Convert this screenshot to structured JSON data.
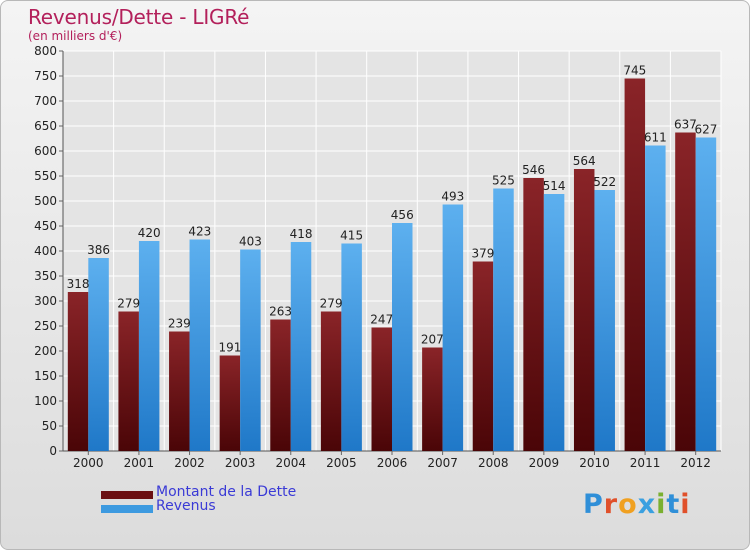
{
  "header": {
    "title": "Revenus/Dette - LIGRé",
    "subtitle": "(en milliers d'€)"
  },
  "legend": {
    "debt_label": "Montant de la Dette",
    "revenue_label": "Revenus"
  },
  "logo": {
    "letters": [
      "P",
      "r",
      "o",
      "x",
      "i",
      "t",
      "i"
    ]
  },
  "colors": {
    "debt": "#7a1a1d",
    "revenue": "#3d9ae0",
    "title": "#b3205b",
    "legend_text": "#3a3ad6"
  },
  "chart_data": {
    "type": "bar",
    "title": "Revenus/Dette - LIGRé",
    "subtitle": "(en milliers d'€)",
    "categories": [
      "2000",
      "2001",
      "2002",
      "2003",
      "2004",
      "2005",
      "2006",
      "2007",
      "2008",
      "2009",
      "2010",
      "2011",
      "2012"
    ],
    "series": [
      {
        "name": "Montant de la Dette",
        "values": [
          318,
          279,
          239,
          191,
          263,
          279,
          247,
          207,
          379,
          546,
          564,
          745,
          637
        ]
      },
      {
        "name": "Revenus",
        "values": [
          386,
          420,
          423,
          403,
          418,
          415,
          456,
          493,
          525,
          514,
          522,
          611,
          627
        ]
      }
    ],
    "ylim": [
      0,
      800
    ],
    "yticks": [
      0,
      50,
      100,
      150,
      200,
      250,
      300,
      350,
      400,
      450,
      500,
      550,
      600,
      650,
      700,
      750,
      800
    ],
    "grid": true,
    "legend_position": "bottom-left"
  }
}
